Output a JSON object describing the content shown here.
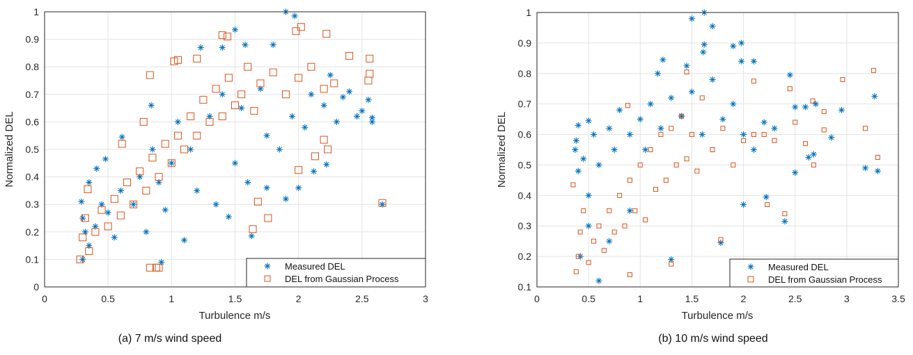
{
  "chart_data": [
    {
      "type": "scatter",
      "caption": "(a) 7 m/s wind speed",
      "xlabel": "Turbulence m/s",
      "ylabel": "Normalized DEL",
      "xlim": [
        0,
        3
      ],
      "ylim": [
        0,
        1
      ],
      "xticks": [
        "0",
        "0.5",
        "1",
        "1.5",
        "2",
        "2.5",
        "3"
      ],
      "yticks": [
        "0",
        "0.1",
        "0.2",
        "0.3",
        "0.4",
        "0.5",
        "0.6",
        "0.7",
        "0.8",
        "0.9",
        "1"
      ],
      "grid": true,
      "legend_position": "bottom-right",
      "series": [
        {
          "name": "Measured DEL",
          "marker": "asterisk",
          "color": "#0072BD",
          "points": [
            [
              1.9,
              1.0
            ],
            [
              1.97,
              0.985
            ],
            [
              1.5,
              0.935
            ],
            [
              1.23,
              0.87
            ],
            [
              1.4,
              0.87
            ],
            [
              1.58,
              0.88
            ],
            [
              1.8,
              0.88
            ],
            [
              0.84,
              0.66
            ],
            [
              0.61,
              0.545
            ],
            [
              2.55,
              0.68
            ],
            [
              2.58,
              0.6
            ],
            [
              2.58,
              0.615
            ],
            [
              2.5,
              0.64
            ],
            [
              2.46,
              0.62
            ],
            [
              2.3,
              0.6
            ],
            [
              2.66,
              0.3
            ],
            [
              1.9,
              0.32
            ],
            [
              2.0,
              0.36
            ],
            [
              1.75,
              0.36
            ],
            [
              1.63,
              0.185
            ],
            [
              1.45,
              0.255
            ],
            [
              2.22,
              0.445
            ],
            [
              2.12,
              0.42
            ],
            [
              0.35,
              0.38
            ],
            [
              0.41,
              0.43
            ],
            [
              0.48,
              0.465
            ],
            [
              0.29,
              0.31
            ],
            [
              0.3,
              0.25
            ],
            [
              0.32,
              0.2
            ],
            [
              0.35,
              0.15
            ],
            [
              0.3,
              0.1
            ],
            [
              0.4,
              0.22
            ],
            [
              0.45,
              0.3
            ],
            [
              0.5,
              0.27
            ],
            [
              0.55,
              0.18
            ],
            [
              0.6,
              0.35
            ],
            [
              0.7,
              0.3
            ],
            [
              0.75,
              0.4
            ],
            [
              0.8,
              0.2
            ],
            [
              0.85,
              0.5
            ],
            [
              0.9,
              0.38
            ],
            [
              0.92,
              0.09
            ],
            [
              0.95,
              0.28
            ],
            [
              1.0,
              0.45
            ],
            [
              1.05,
              0.6
            ],
            [
              1.1,
              0.17
            ],
            [
              1.15,
              0.5
            ],
            [
              1.2,
              0.35
            ],
            [
              1.3,
              0.62
            ],
            [
              1.35,
              0.3
            ],
            [
              1.4,
              0.7
            ],
            [
              1.5,
              0.45
            ],
            [
              1.55,
              0.65
            ],
            [
              1.6,
              0.38
            ],
            [
              1.7,
              0.72
            ],
            [
              1.75,
              0.55
            ],
            [
              1.85,
              0.5
            ],
            [
              1.95,
              0.62
            ],
            [
              2.05,
              0.58
            ],
            [
              2.1,
              0.7
            ],
            [
              2.2,
              0.66
            ],
            [
              2.25,
              0.77
            ],
            [
              2.35,
              0.69
            ],
            [
              2.4,
              0.71
            ]
          ]
        },
        {
          "name": "DEL from Gaussian Process",
          "marker": "square",
          "color": "#D95319",
          "points": [
            [
              1.98,
              0.93
            ],
            [
              2.02,
              0.945
            ],
            [
              2.22,
              0.92
            ],
            [
              1.4,
              0.915
            ],
            [
              1.44,
              0.91
            ],
            [
              0.83,
              0.77
            ],
            [
              0.78,
              0.6
            ],
            [
              0.61,
              0.52
            ],
            [
              2.56,
              0.83
            ],
            [
              2.56,
              0.775
            ],
            [
              2.55,
              0.75
            ],
            [
              2.4,
              0.84
            ],
            [
              2.66,
              0.305
            ],
            [
              1.64,
              0.21
            ],
            [
              1.76,
              0.25
            ],
            [
              1.68,
              0.31
            ],
            [
              2.0,
              0.425
            ],
            [
              2.2,
              0.535
            ],
            [
              2.23,
              0.5
            ],
            [
              2.13,
              0.475
            ],
            [
              0.88,
              0.07
            ],
            [
              0.83,
              0.07
            ],
            [
              0.9,
              0.07
            ],
            [
              0.34,
              0.355
            ],
            [
              1.2,
              0.83
            ],
            [
              1.02,
              0.82
            ],
            [
              1.05,
              0.825
            ],
            [
              2.28,
              0.74
            ],
            [
              0.28,
              0.1
            ],
            [
              0.3,
              0.18
            ],
            [
              0.32,
              0.25
            ],
            [
              0.35,
              0.13
            ],
            [
              0.4,
              0.2
            ],
            [
              0.45,
              0.28
            ],
            [
              0.5,
              0.22
            ],
            [
              0.55,
              0.32
            ],
            [
              0.6,
              0.26
            ],
            [
              0.65,
              0.38
            ],
            [
              0.7,
              0.3
            ],
            [
              0.75,
              0.42
            ],
            [
              0.8,
              0.35
            ],
            [
              0.85,
              0.47
            ],
            [
              0.9,
              0.4
            ],
            [
              0.95,
              0.52
            ],
            [
              1.0,
              0.45
            ],
            [
              1.05,
              0.55
            ],
            [
              1.1,
              0.5
            ],
            [
              1.15,
              0.62
            ],
            [
              1.2,
              0.55
            ],
            [
              1.25,
              0.68
            ],
            [
              1.3,
              0.6
            ],
            [
              1.35,
              0.72
            ],
            [
              1.4,
              0.62
            ],
            [
              1.45,
              0.76
            ],
            [
              1.5,
              0.66
            ],
            [
              1.55,
              0.7
            ],
            [
              1.6,
              0.8
            ],
            [
              1.65,
              0.64
            ],
            [
              1.7,
              0.74
            ],
            [
              1.8,
              0.78
            ],
            [
              1.9,
              0.7
            ],
            [
              2.0,
              0.76
            ],
            [
              2.1,
              0.8
            ],
            [
              2.2,
              0.72
            ]
          ]
        }
      ]
    },
    {
      "type": "scatter",
      "caption": "(b) 10 m/s wind speed",
      "xlabel": "Turbulence m/s",
      "ylabel": "Normalized DEL",
      "xlim": [
        0,
        3.5
      ],
      "ylim": [
        0.1,
        1
      ],
      "xticks": [
        "0",
        "0.5",
        "1",
        "1.5",
        "2",
        "2.5",
        "3",
        "3.5"
      ],
      "yticks": [
        "0.1",
        "0.2",
        "0.3",
        "0.4",
        "0.5",
        "0.6",
        "0.7",
        "0.8",
        "0.9",
        "1"
      ],
      "grid": true,
      "legend_position": "bottom-right",
      "series": [
        {
          "name": "Measured DEL",
          "marker": "asterisk",
          "color": "#0072BD",
          "points": [
            [
              1.62,
              1.0
            ],
            [
              1.5,
              0.98
            ],
            [
              1.7,
              0.955
            ],
            [
              1.62,
              0.895
            ],
            [
              1.61,
              0.87
            ],
            [
              1.9,
              0.89
            ],
            [
              1.98,
              0.9
            ],
            [
              1.22,
              0.845
            ],
            [
              1.98,
              0.84
            ],
            [
              2.1,
              0.84
            ],
            [
              1.45,
              0.825
            ],
            [
              1.17,
              0.8
            ],
            [
              2.45,
              0.795
            ],
            [
              3.27,
              0.725
            ],
            [
              2.95,
              0.68
            ],
            [
              2.85,
              0.59
            ],
            [
              3.18,
              0.49
            ],
            [
              3.3,
              0.48
            ],
            [
              2.5,
              0.475
            ],
            [
              2.4,
              0.315
            ],
            [
              1.78,
              0.245
            ],
            [
              1.3,
              0.19
            ],
            [
              0.37,
              0.55
            ],
            [
              0.38,
              0.58
            ],
            [
              0.4,
              0.63
            ],
            [
              0.5,
              0.645
            ],
            [
              0.6,
              0.12
            ],
            [
              2.63,
              0.525
            ],
            [
              2.68,
              0.535
            ],
            [
              2.22,
              0.395
            ],
            [
              2.0,
              0.37
            ],
            [
              0.4,
              0.48
            ],
            [
              0.45,
              0.52
            ],
            [
              0.5,
              0.4
            ],
            [
              0.55,
              0.6
            ],
            [
              0.6,
              0.5
            ],
            [
              0.7,
              0.62
            ],
            [
              0.75,
              0.55
            ],
            [
              0.8,
              0.68
            ],
            [
              0.9,
              0.6
            ],
            [
              1.0,
              0.65
            ],
            [
              1.05,
              0.55
            ],
            [
              1.1,
              0.7
            ],
            [
              1.2,
              0.62
            ],
            [
              1.3,
              0.72
            ],
            [
              1.4,
              0.66
            ],
            [
              1.5,
              0.74
            ],
            [
              1.6,
              0.6
            ],
            [
              1.7,
              0.78
            ],
            [
              1.8,
              0.65
            ],
            [
              1.9,
              0.7
            ],
            [
              2.0,
              0.6
            ],
            [
              2.1,
              0.55
            ],
            [
              2.2,
              0.64
            ],
            [
              2.3,
              0.62
            ],
            [
              2.5,
              0.69
            ],
            [
              2.6,
              0.69
            ],
            [
              2.7,
              0.7
            ],
            [
              0.42,
              0.2
            ],
            [
              0.5,
              0.3
            ],
            [
              0.7,
              0.25
            ],
            [
              0.9,
              0.35
            ]
          ]
        },
        {
          "name": "DEL from Gaussian Process",
          "marker": "square",
          "color": "#D95319",
          "points": [
            [
              3.26,
              0.81
            ],
            [
              2.96,
              0.78
            ],
            [
              2.1,
              0.775
            ],
            [
              3.18,
              0.62
            ],
            [
              3.3,
              0.525
            ],
            [
              2.78,
              0.615
            ],
            [
              2.68,
              0.5
            ],
            [
              2.4,
              0.34
            ],
            [
              2.23,
              0.37
            ],
            [
              1.78,
              0.255
            ],
            [
              1.3,
              0.175
            ],
            [
              0.9,
              0.14
            ],
            [
              0.35,
              0.435
            ],
            [
              2.78,
              0.675
            ],
            [
              2.45,
              0.75
            ],
            [
              2.67,
              0.71
            ],
            [
              1.45,
              0.805
            ],
            [
              0.88,
              0.695
            ],
            [
              0.38,
              0.15
            ],
            [
              0.4,
              0.2
            ],
            [
              0.42,
              0.28
            ],
            [
              0.45,
              0.35
            ],
            [
              0.5,
              0.18
            ],
            [
              0.55,
              0.25
            ],
            [
              0.6,
              0.3
            ],
            [
              0.65,
              0.22
            ],
            [
              0.7,
              0.35
            ],
            [
              0.75,
              0.28
            ],
            [
              0.8,
              0.4
            ],
            [
              0.85,
              0.3
            ],
            [
              0.9,
              0.45
            ],
            [
              0.95,
              0.35
            ],
            [
              1.0,
              0.5
            ],
            [
              1.05,
              0.32
            ],
            [
              1.1,
              0.55
            ],
            [
              1.15,
              0.42
            ],
            [
              1.2,
              0.6
            ],
            [
              1.25,
              0.45
            ],
            [
              1.3,
              0.62
            ],
            [
              1.35,
              0.5
            ],
            [
              1.4,
              0.66
            ],
            [
              1.45,
              0.52
            ],
            [
              1.5,
              0.6
            ],
            [
              1.55,
              0.48
            ],
            [
              1.6,
              0.72
            ],
            [
              1.7,
              0.55
            ],
            [
              1.8,
              0.62
            ],
            [
              1.9,
              0.5
            ],
            [
              2.0,
              0.58
            ],
            [
              2.1,
              0.6
            ],
            [
              2.2,
              0.6
            ],
            [
              2.3,
              0.58
            ],
            [
              2.5,
              0.64
            ],
            [
              2.6,
              0.57
            ]
          ]
        }
      ]
    }
  ]
}
